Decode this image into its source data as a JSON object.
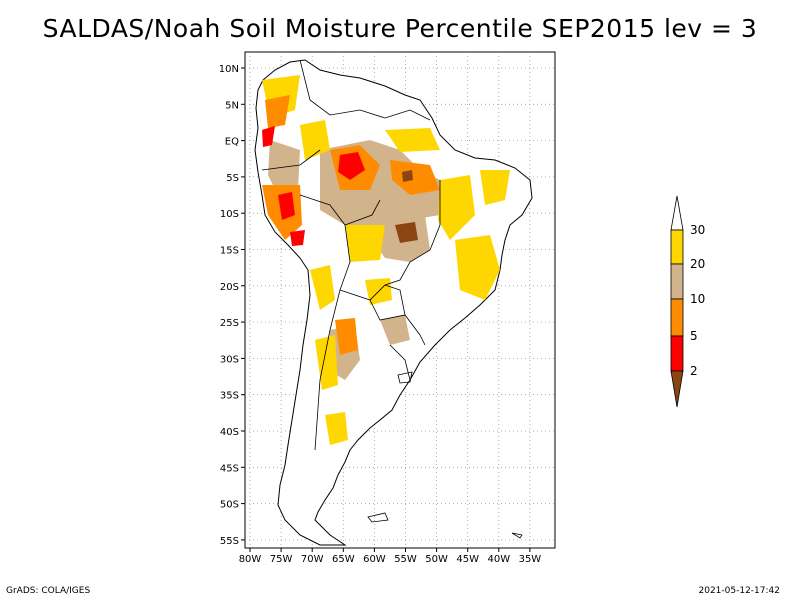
{
  "title": "SALDAS/Noah Soil Moisture Percentile SEP2015 lev = 3",
  "map": {
    "lat_labels": [
      "10N",
      "5N",
      "EQ",
      "5S",
      "10S",
      "15S",
      "20S",
      "25S",
      "30S",
      "35S",
      "40S",
      "45S",
      "50S",
      "55S"
    ],
    "lon_labels": [
      "80W",
      "75W",
      "70W",
      "65W",
      "60W",
      "55W",
      "50W",
      "45W",
      "40W",
      "35W"
    ]
  },
  "colorbar": {
    "levels": [
      "2",
      "5",
      "10",
      "20",
      "30"
    ],
    "colors": {
      "below_2": "#8B4513",
      "2_5": "#FF0000",
      "5_10": "#FF8C00",
      "10_20": "#D2B48C",
      "20_30": "#FFD700",
      "above_30": "#FFFFFF"
    }
  },
  "footer": {
    "left": "GrADS: COLA/IGES",
    "right": "2021-05-12-17:42"
  }
}
